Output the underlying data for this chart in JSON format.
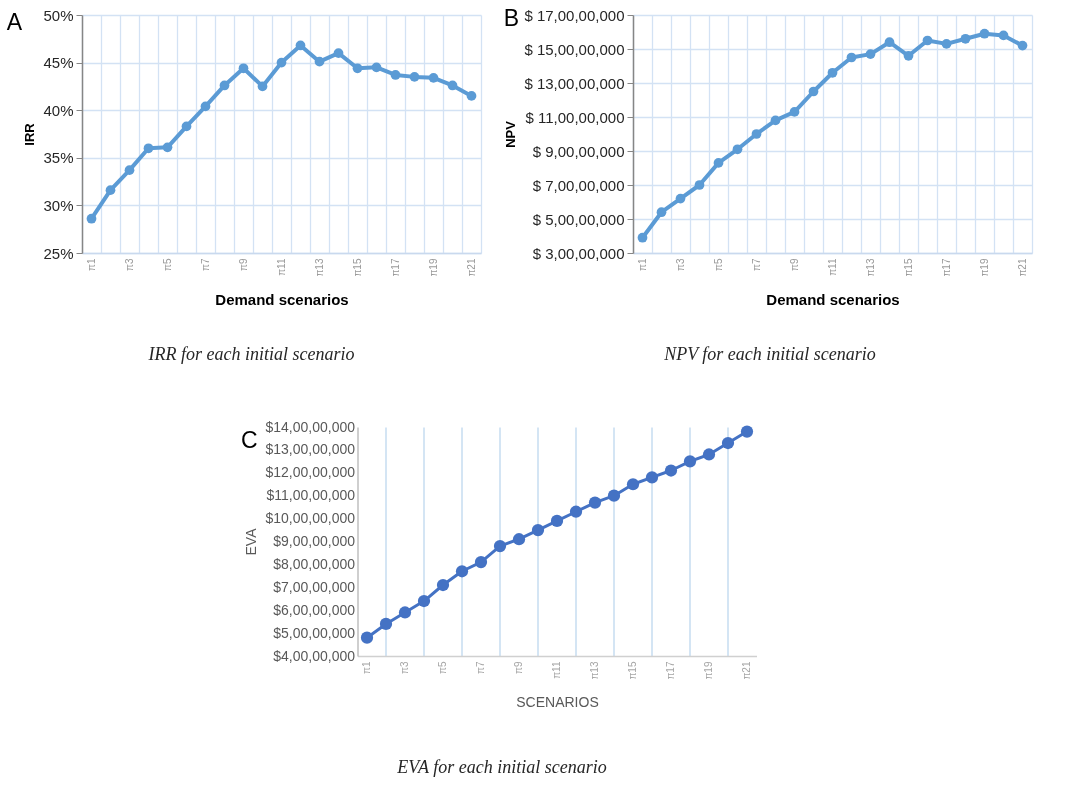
{
  "chart_data": [
    {
      "type": "line",
      "annotations": [
        "A",
        "IRR for each initial scenario"
      ],
      "xlabel": "Demand scenarios",
      "ylabel": "IRR",
      "categories": [
        "π1",
        null,
        "π3",
        null,
        "π5",
        null,
        "π7",
        null,
        "π9",
        null,
        "π11",
        null,
        "π13",
        null,
        "π15",
        null,
        "π17",
        null,
        "π19",
        null,
        "π21"
      ],
      "values": [
        28.6,
        31.6,
        33.7,
        36.0,
        36.1,
        38.3,
        40.4,
        42.6,
        44.4,
        42.5,
        45.0,
        46.8,
        45.1,
        46.0,
        44.4,
        44.5,
        43.7,
        43.5,
        43.4,
        42.6,
        41.5
      ],
      "color": "#5b9bd5",
      "ylim": [
        25,
        50
      ],
      "yticks": [
        {
          "value": 25,
          "label": "25%"
        },
        {
          "value": 30,
          "label": "30%"
        },
        {
          "value": 35,
          "label": "35%"
        },
        {
          "value": 40,
          "label": "40%"
        },
        {
          "value": 45,
          "label": "45%"
        },
        {
          "value": 50,
          "label": "50%"
        }
      ],
      "grid": true,
      "marker": "circle",
      "line_style": "solid"
    },
    {
      "type": "line",
      "annotations": [
        "B",
        "NPV for each initial scenario"
      ],
      "xlabel": "Demand scenarios",
      "ylabel": "NPV",
      "categories": [
        "π1",
        null,
        "π3",
        null,
        "π5",
        null,
        "π7",
        null,
        "π9",
        null,
        "π11",
        null,
        "π13",
        null,
        "π15",
        null,
        "π17",
        null,
        "π19",
        null,
        "π21"
      ],
      "values": [
        39000000,
        54000000,
        62000000,
        70000000,
        83000000,
        91000000,
        100000000,
        108000000,
        113000000,
        125000000,
        136000000,
        145000000,
        147000000,
        154000000,
        146000000,
        155000000,
        153000000,
        156000000,
        159000000,
        158000000,
        152000000
      ],
      "color": "#5b9bd5",
      "ylim": [
        30000000,
        170000000
      ],
      "yticks": [
        {
          "value": 30000000,
          "label": "$ 3,00,00,000"
        },
        {
          "value": 50000000,
          "label": "$ 5,00,00,000"
        },
        {
          "value": 70000000,
          "label": "$ 7,00,00,000"
        },
        {
          "value": 90000000,
          "label": "$ 9,00,00,000"
        },
        {
          "value": 110000000,
          "label": "$ 11,00,00,000"
        },
        {
          "value": 130000000,
          "label": "$ 13,00,00,000"
        },
        {
          "value": 150000000,
          "label": "$ 15,00,00,000"
        },
        {
          "value": 170000000,
          "label": "$ 17,00,00,000"
        }
      ],
      "grid": true,
      "marker": "circle",
      "line_style": "solid"
    },
    {
      "type": "line",
      "annotations": [
        "C",
        "EVA for each initial scenario"
      ],
      "xlabel": "SCENARIOS",
      "ylabel": "EVA",
      "categories": [
        "π1",
        null,
        "π3",
        null,
        "π5",
        null,
        "π7",
        null,
        "π9",
        null,
        "π11",
        null,
        "π13",
        null,
        "π15",
        null,
        "π17",
        null,
        "π19",
        null,
        "π21"
      ],
      "values": [
        48000000,
        54000000,
        59000000,
        64000000,
        71000000,
        77000000,
        81000000,
        88000000,
        91000000,
        95000000,
        99000000,
        103000000,
        107000000,
        110000000,
        115000000,
        118000000,
        121000000,
        125000000,
        128000000,
        133000000,
        138000000
      ],
      "color": "#4472c4",
      "ylim": [
        40000000,
        140000000
      ],
      "yticks": [
        {
          "value": 40000000,
          "label": "$4,00,00,000"
        },
        {
          "value": 50000000,
          "label": "$5,00,00,000"
        },
        {
          "value": 60000000,
          "label": "$6,00,00,000"
        },
        {
          "value": 70000000,
          "label": "$7,00,00,000"
        },
        {
          "value": 80000000,
          "label": "$8,00,00,000"
        },
        {
          "value": 90000000,
          "label": "$9,00,00,000"
        },
        {
          "value": 100000000,
          "label": "$10,00,00,000"
        },
        {
          "value": 110000000,
          "label": "$11,00,00,000"
        },
        {
          "value": 120000000,
          "label": "$12,00,00,000"
        },
        {
          "value": 130000000,
          "label": "$13,00,00,000"
        },
        {
          "value": 140000000,
          "label": "$14,00,00,000"
        }
      ],
      "grid": "x",
      "marker": "circle",
      "line_style": "solid"
    }
  ]
}
